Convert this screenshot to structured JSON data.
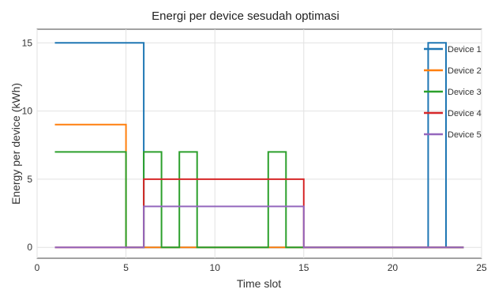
{
  "chart_data": {
    "type": "line",
    "title": "Energi per device sesudah optimasi",
    "xlabel": "Time slot",
    "ylabel": "Energy per device (kWh)",
    "xlim": [
      0,
      25
    ],
    "ylim": [
      -0.8,
      16
    ],
    "xticks": [
      0,
      5,
      10,
      15,
      20,
      25
    ],
    "yticks": [
      0,
      5,
      10,
      15
    ],
    "grid": true,
    "legend_position": "top-right",
    "step": "post",
    "x": [
      1,
      2,
      3,
      4,
      5,
      6,
      7,
      8,
      9,
      10,
      11,
      12,
      13,
      14,
      15,
      16,
      17,
      18,
      19,
      20,
      21,
      22,
      23,
      24
    ],
    "series": [
      {
        "name": "Device 1",
        "color": "#1f77b4",
        "values": [
          15,
          15,
          15,
          15,
          15,
          0,
          0,
          0,
          0,
          0,
          0,
          0,
          0,
          0,
          0,
          0,
          0,
          0,
          0,
          0,
          0,
          15,
          0,
          0
        ]
      },
      {
        "name": "Device 2",
        "color": "#ff7f0e",
        "values": [
          9,
          9,
          9,
          9,
          0,
          0,
          0,
          0,
          0,
          0,
          0,
          0,
          0,
          0,
          0,
          0,
          0,
          0,
          0,
          0,
          0,
          0,
          0,
          0
        ]
      },
      {
        "name": "Device 3",
        "color": "#2ca02c",
        "values": [
          7,
          7,
          7,
          7,
          0,
          7,
          0,
          7,
          0,
          0,
          0,
          0,
          7,
          0,
          0,
          0,
          0,
          0,
          0,
          0,
          0,
          0,
          0,
          0
        ]
      },
      {
        "name": "Device 4",
        "color": "#d62728",
        "values": [
          0,
          0,
          0,
          0,
          0,
          5,
          5,
          5,
          5,
          5,
          5,
          5,
          5,
          5,
          0,
          0,
          0,
          0,
          0,
          0,
          0,
          0,
          0,
          0
        ]
      },
      {
        "name": "Device 5",
        "color": "#9467bd",
        "values": [
          0,
          0,
          0,
          0,
          0,
          3,
          3,
          3,
          3,
          3,
          3,
          3,
          3,
          3,
          0,
          0,
          0,
          0,
          0,
          0,
          0,
          0,
          0,
          0
        ]
      }
    ]
  }
}
